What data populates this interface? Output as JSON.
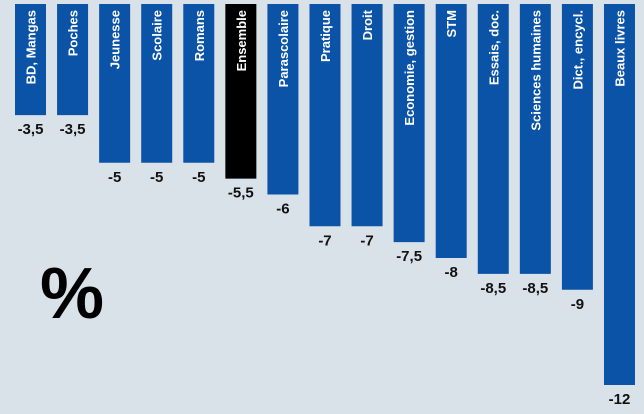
{
  "chart_data": {
    "type": "bar",
    "orientation": "vertical-negative",
    "categories": [
      "BD, Mangas",
      "Poches",
      "Jeunesse",
      "Scolaire",
      "Romans",
      "Ensemble",
      "Parascolaire",
      "Pratique",
      "Droit",
      "Economie, gestion",
      "STM",
      "Essais, doc.",
      "Sciences humaines",
      "Dict., encycl.",
      "Beaux livres"
    ],
    "values": [
      -3.5,
      -3.5,
      -5,
      -5,
      -5,
      -5.5,
      -6,
      -7,
      -7,
      -7.5,
      -8,
      -8.5,
      -8.5,
      -9,
      -12
    ],
    "value_labels": [
      "-3,5",
      "-3,5",
      "-5",
      "-5",
      "-5",
      "-5,5",
      "-6",
      "-7",
      "-7",
      "-7,5",
      "-8",
      "-8,5",
      "-8,5",
      "-9",
      "-12"
    ],
    "highlight_category": "Ensemble",
    "unit_label": "%",
    "ylim": [
      -12,
      0
    ],
    "grid": false,
    "colors": {
      "background": "#d9e1e9",
      "bar": "#0b53a6",
      "highlight_bar": "#000000",
      "bar_text": "#ffffff",
      "value_text": "#111111"
    }
  }
}
